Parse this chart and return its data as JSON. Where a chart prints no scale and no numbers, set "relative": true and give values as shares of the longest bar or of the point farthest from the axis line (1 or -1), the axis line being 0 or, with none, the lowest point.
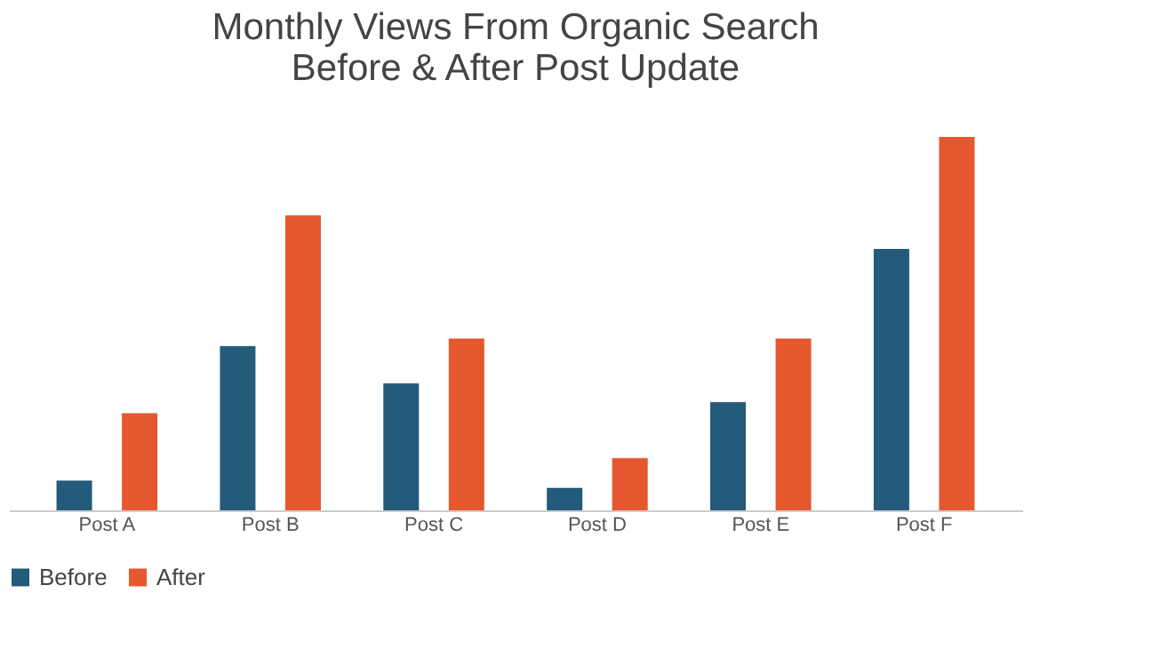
{
  "chart_data": {
    "type": "bar",
    "title": [
      "Monthly Views From Organic Search",
      "Before & After Post Update"
    ],
    "categories": [
      "Post A",
      "Post B",
      "Post C",
      "Post D",
      "Post E",
      "Post F"
    ],
    "relative": true,
    "legend": "bottom",
    "grid": false,
    "series": [
      {
        "name": "Before",
        "color": "#245a7a",
        "values": [
          0.08,
          0.44,
          0.34,
          0.06,
          0.29,
          0.7
        ]
      },
      {
        "name": "After",
        "color": "#e5582f",
        "values": [
          0.26,
          0.79,
          0.46,
          0.14,
          0.46,
          1.0
        ]
      }
    ]
  }
}
